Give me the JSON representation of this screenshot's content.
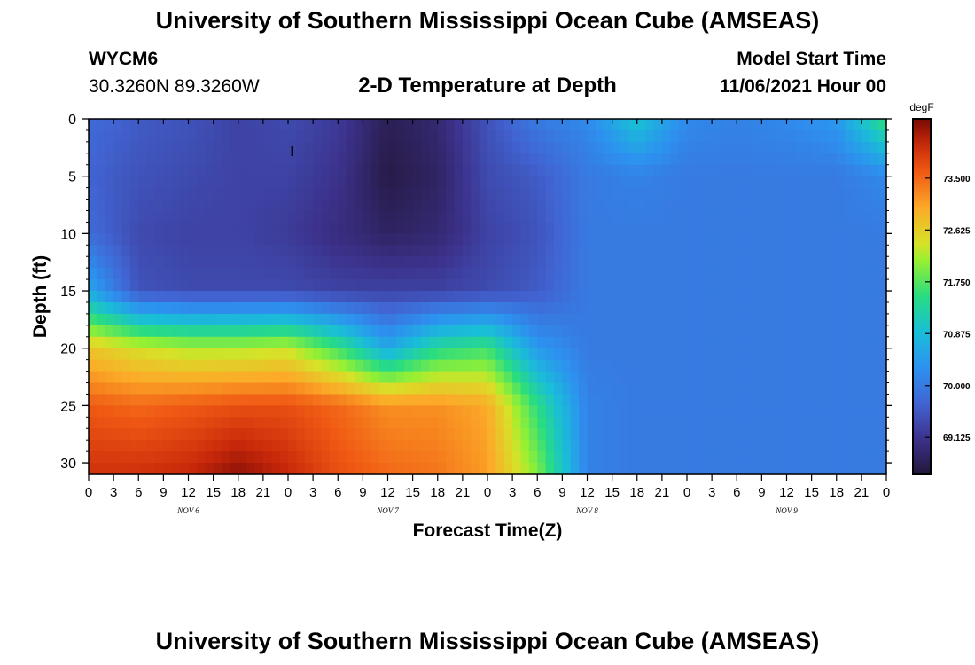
{
  "header": {
    "title": "University of Southern Mississippi Ocean Cube (AMSEAS)",
    "station_id": "WYCM6",
    "station_coords": "30.3260N  89.3260W",
    "plot_title": "2-D Temperature at Depth",
    "model_start_label": "Model Start Time",
    "model_start_value": "11/06/2021 Hour 00"
  },
  "footer": {
    "title": "University of Southern Mississippi Ocean Cube (AMSEAS)"
  },
  "chart_data": {
    "type": "heatmap",
    "title": "2-D Temperature at Depth",
    "xlabel": "Forecast Time(Z)",
    "ylabel": "Depth (ft)",
    "x_hours": [
      0,
      6,
      12,
      18,
      24,
      30,
      36,
      42,
      48,
      54,
      60,
      66,
      72,
      78,
      84,
      90,
      96
    ],
    "x_tick_labels": [
      "0",
      "3",
      "6",
      "9",
      "12",
      "15",
      "18",
      "21",
      "0",
      "3",
      "6",
      "9",
      "12",
      "15",
      "18",
      "21",
      "0",
      "3",
      "6",
      "9",
      "12",
      "15",
      "18",
      "21",
      "0",
      "3",
      "6",
      "9",
      "12",
      "15",
      "18",
      "21",
      "0"
    ],
    "date_labels": [
      {
        "label": "NOV  6",
        "hour": 12
      },
      {
        "label": "NOV  7",
        "hour": 36
      },
      {
        "label": "NOV  8",
        "hour": 60
      },
      {
        "label": "NOV  9",
        "hour": 84
      }
    ],
    "xlim": [
      0,
      96
    ],
    "depths_ft": [
      0,
      5,
      10,
      15,
      20,
      25,
      31
    ],
    "y_tick_labels": [
      "0",
      "5",
      "10",
      "15",
      "20",
      "25",
      "30"
    ],
    "y_tick_values": [
      0,
      5,
      10,
      15,
      20,
      25,
      30
    ],
    "ylim": [
      0,
      31
    ],
    "temperature_degF": [
      [
        69.8,
        69.6,
        69.5,
        69.3,
        69.4,
        69.2,
        68.7,
        68.9,
        69.5,
        70.0,
        70.2,
        71.0,
        70.2,
        70.1,
        70.2,
        70.4,
        71.6
      ],
      [
        69.7,
        69.5,
        69.4,
        69.3,
        69.3,
        69.1,
        68.6,
        68.8,
        69.4,
        69.6,
        70.0,
        70.1,
        70.0,
        70.0,
        70.0,
        70.0,
        70.2
      ],
      [
        69.8,
        69.4,
        69.3,
        69.3,
        69.2,
        69.0,
        68.8,
        68.9,
        69.3,
        69.5,
        70.0,
        70.0,
        70.0,
        70.0,
        70.0,
        70.0,
        70.0
      ],
      [
        70.6,
        69.5,
        69.4,
        69.4,
        69.4,
        69.3,
        69.3,
        69.3,
        69.4,
        69.6,
        70.0,
        70.0,
        70.0,
        70.0,
        70.0,
        70.0,
        70.0
      ],
      [
        72.7,
        72.4,
        72.2,
        72.2,
        72.3,
        71.6,
        70.6,
        71.4,
        71.6,
        70.4,
        70.0,
        70.0,
        70.0,
        70.0,
        70.0,
        70.0,
        70.0
      ],
      [
        73.6,
        73.5,
        73.6,
        73.7,
        73.7,
        73.5,
        73.2,
        73.2,
        73.0,
        71.5,
        70.1,
        70.0,
        70.0,
        70.0,
        70.0,
        70.0,
        70.0
      ],
      [
        74.0,
        74.0,
        74.1,
        74.4,
        74.1,
        73.7,
        73.5,
        73.4,
        73.1,
        72.0,
        70.1,
        70.0,
        70.0,
        70.0,
        70.0,
        70.0,
        70.0
      ]
    ],
    "colorbar": {
      "unit": "degF",
      "tick_labels": [
        "73.500",
        "72.625",
        "71.750",
        "70.875",
        "70.000",
        "69.125"
      ],
      "tick_values": [
        73.5,
        72.625,
        71.75,
        70.875,
        70.0,
        69.125
      ],
      "range": [
        68.5,
        74.5
      ]
    },
    "annotations": [
      {
        "text": "I",
        "hour": 24.5,
        "depth_ft": 2.8
      }
    ]
  }
}
